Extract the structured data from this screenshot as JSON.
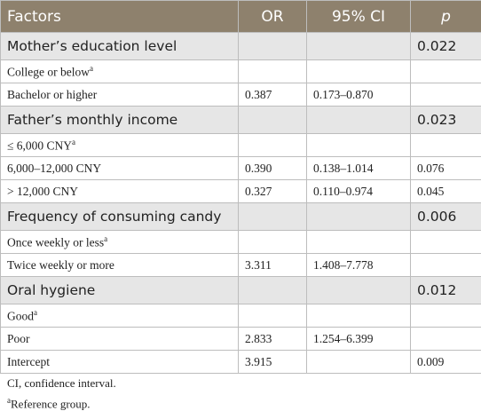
{
  "table": {
    "header": [
      "Factors",
      "OR",
      "95% CI",
      "p"
    ],
    "groups": [
      {
        "title": "Mother’s education level",
        "p": "0.022",
        "rows": [
          {
            "factor": "College or below",
            "note": "a"
          },
          {
            "factor": "Bachelor or higher",
            "or": "0.387",
            "ci": "0.173–0.870"
          }
        ]
      },
      {
        "title": "Father’s monthly income",
        "p": "0.023",
        "rows": [
          {
            "factor": "≤ 6,000 CNY",
            "note": "a"
          },
          {
            "factor": "6,000–12,000 CNY",
            "or": "0.390",
            "ci": "0.138–1.014",
            "p": "0.076"
          },
          {
            "factor": "> 12,000 CNY",
            "or": "0.327",
            "ci": "0.110–0.974",
            "p": "0.045"
          }
        ]
      },
      {
        "title": "Frequency of consuming candy",
        "p": "0.006",
        "rows": [
          {
            "factor": "Once weekly or less",
            "note": "a"
          },
          {
            "factor": "Twice weekly or more",
            "or": "3.311",
            "ci": "1.408–7.778"
          }
        ]
      },
      {
        "title": "Oral hygiene",
        "p": "0.012",
        "rows": [
          {
            "factor": "Good",
            "note": "a"
          },
          {
            "factor": "Poor",
            "or": "2.833",
            "ci": "1.254–6.399"
          }
        ]
      }
    ],
    "intercept": {
      "factor": "Intercept",
      "or": "3.915",
      "p": "0.009"
    }
  },
  "footnotes": [
    {
      "text": "CI, confidence interval."
    },
    {
      "mark": "a",
      "text": "Reference group."
    }
  ]
}
